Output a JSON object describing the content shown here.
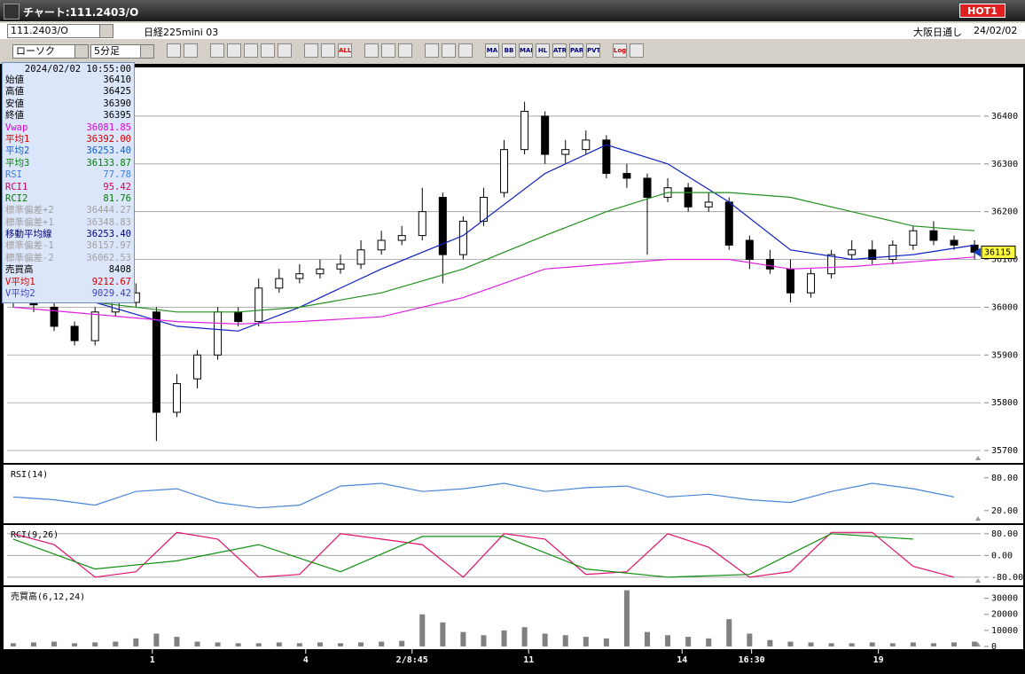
{
  "window": {
    "title": "チャート:111.2403/O",
    "hot": "HOT1"
  },
  "toolbar": {
    "symbol": "111.2403/O",
    "name": "日経225mini 03",
    "market": "大阪日通し",
    "date": "24/02/02",
    "chart_type": "ローソク",
    "interval": "5分足",
    "icons": [
      "ALL",
      "MA",
      "BB",
      "MAE",
      "HL",
      "ATR",
      "PAR",
      "PVT",
      "Log"
    ]
  },
  "info_panel": {
    "timestamp": "2024/02/02 10:55:00",
    "rows": [
      {
        "label": "始値",
        "value": "36410",
        "color": "#000000"
      },
      {
        "label": "高値",
        "value": "36425",
        "color": "#000000"
      },
      {
        "label": "安値",
        "value": "36390",
        "color": "#000000"
      },
      {
        "label": "終値",
        "value": "36395",
        "color": "#000000"
      },
      {
        "label": "Vwap",
        "value": "36081.85",
        "color": "#e000e0"
      },
      {
        "label": "平均1",
        "value": "36392.00",
        "color": "#d00000"
      },
      {
        "label": "平均2",
        "value": "36253.40",
        "color": "#1060d0"
      },
      {
        "label": "平均3",
        "value": "36133.87",
        "color": "#008000"
      },
      {
        "label": "RSI",
        "value": "77.78",
        "color": "#4080e0"
      },
      {
        "label": "RCI1",
        "value": "95.42",
        "color": "#d00060"
      },
      {
        "label": "RCI2",
        "value": "81.76",
        "color": "#008000"
      },
      {
        "label": "標準偏差+2",
        "value": "36444.27",
        "color": "#a0a0a0"
      },
      {
        "label": "標準偏差+1",
        "value": "36348.83",
        "color": "#a0a0a0"
      },
      {
        "label": "移動平均線",
        "value": "36253.40",
        "color": "#000080"
      },
      {
        "label": "標準偏差-1",
        "value": "36157.97",
        "color": "#a0a0a0"
      },
      {
        "label": "標準偏差-2",
        "value": "36062.53",
        "color": "#a0a0a0"
      },
      {
        "label": "売買高",
        "value": "8408",
        "color": "#000000"
      },
      {
        "label": "V平均1",
        "value": "9212.67",
        "color": "#d00000"
      },
      {
        "label": "V平均2",
        "value": "9029.42",
        "color": "#4040c0"
      }
    ]
  },
  "chart_data": [
    {
      "type": "candlestick",
      "xlim": [
        -0.3,
        47.3
      ],
      "ylim": [
        35674,
        36502
      ],
      "yticks": [
        35700,
        35800,
        35900,
        36000,
        36100,
        36200,
        36300,
        36400
      ],
      "grid": true,
      "up_color": "#ffffff",
      "down_color": "#000000",
      "open": [
        36010,
        36020,
        36000,
        35960,
        35930,
        35990,
        36010,
        35990,
        35780,
        35850,
        35900,
        35990,
        35970,
        36040,
        36060,
        36070,
        36080,
        36090,
        36120,
        36140,
        36150,
        36230,
        36110,
        36180,
        36240,
        36330,
        36400,
        36320,
        36330,
        36350,
        36280,
        36270,
        36230,
        36250,
        36210,
        36220,
        36140,
        36100,
        36080,
        36030,
        36070,
        36110,
        36120,
        36100,
        36130,
        36160,
        36140,
        36130
      ],
      "high": [
        36040,
        36035,
        36010,
        35970,
        36000,
        36030,
        36050,
        36000,
        35860,
        35910,
        36000,
        36000,
        36060,
        36080,
        36090,
        36100,
        36110,
        36140,
        36160,
        36170,
        36250,
        36240,
        36190,
        36250,
        36350,
        36430,
        36410,
        36350,
        36370,
        36360,
        36300,
        36280,
        36270,
        36260,
        36240,
        36230,
        36150,
        36120,
        36100,
        36080,
        36120,
        36140,
        36140,
        36140,
        36170,
        36180,
        36150,
        36140
      ],
      "low": [
        36000,
        35990,
        35950,
        35920,
        35920,
        35980,
        36000,
        35720,
        35770,
        35830,
        35890,
        35960,
        35960,
        36030,
        36050,
        36060,
        36070,
        36080,
        36110,
        36130,
        36140,
        36050,
        36100,
        36170,
        36230,
        36320,
        36300,
        36300,
        36320,
        36270,
        36250,
        36110,
        36220,
        36200,
        36200,
        36120,
        36080,
        36070,
        36010,
        36020,
        36060,
        36100,
        36090,
        36090,
        36120,
        36130,
        36120,
        36100
      ],
      "close": [
        36020,
        36005,
        35960,
        35930,
        35990,
        36010,
        36030,
        35780,
        35840,
        35900,
        35990,
        35970,
        36040,
        36060,
        36070,
        36080,
        36090,
        36120,
        36140,
        36150,
        36200,
        36110,
        36180,
        36230,
        36330,
        36410,
        36320,
        36330,
        36350,
        36280,
        36270,
        36230,
        36250,
        36210,
        36220,
        36130,
        36100,
        36080,
        36030,
        36070,
        36110,
        36120,
        36100,
        36130,
        36160,
        36140,
        36130,
        36115
      ],
      "series": [
        {
          "color": "#1020c0",
          "x": [
            0,
            4,
            8,
            11,
            14,
            18,
            22,
            26,
            29,
            32,
            35,
            38,
            41,
            44,
            47
          ],
          "values": [
            36020,
            36010,
            35960,
            35950,
            36000,
            36080,
            36150,
            36280,
            36340,
            36300,
            36220,
            36120,
            36100,
            36110,
            36130
          ]
        },
        {
          "color": "#209020",
          "x": [
            0,
            4,
            8,
            11,
            14,
            18,
            22,
            26,
            29,
            32,
            35,
            38,
            41,
            44,
            47
          ],
          "values": [
            36030,
            36010,
            35990,
            35990,
            36000,
            36030,
            36080,
            36150,
            36200,
            36240,
            36240,
            36230,
            36200,
            36170,
            36160
          ]
        },
        {
          "color": "#e020e0",
          "x": [
            0,
            4,
            8,
            11,
            14,
            18,
            22,
            26,
            29,
            32,
            35,
            38,
            41,
            44,
            47
          ],
          "values": [
            36000,
            35985,
            35970,
            35965,
            35970,
            35980,
            36020,
            36080,
            36090,
            36100,
            36100,
            36080,
            36085,
            36095,
            36105
          ]
        }
      ],
      "last_price": 36115
    },
    {
      "type": "line",
      "title": "RSI(14)",
      "xlim": [
        -0.3,
        47.3
      ],
      "ylim": [
        -3,
        104
      ],
      "yticks": [
        {
          "value": 20,
          "label": "20.00"
        },
        {
          "value": 80,
          "label": "80.00"
        }
      ],
      "grid": false,
      "series": [
        {
          "color": "#4a86d8",
          "x": [
            0,
            2,
            4,
            6,
            8,
            10,
            12,
            14,
            16,
            18,
            20,
            22,
            24,
            26,
            28,
            30,
            32,
            34,
            36,
            38,
            40,
            42,
            44,
            46
          ],
          "values": [
            45,
            40,
            30,
            55,
            60,
            35,
            25,
            30,
            65,
            70,
            55,
            60,
            70,
            55,
            62,
            65,
            45,
            50,
            40,
            35,
            55,
            70,
            60,
            45
          ]
        }
      ]
    },
    {
      "type": "line",
      "title": "RCI(9,26)",
      "xlim": [
        -0.3,
        47.3
      ],
      "ylim": [
        -110,
        112
      ],
      "yticks": [
        {
          "value": -80,
          "label": "-80.00"
        },
        {
          "value": 0,
          "label": "0.00"
        },
        {
          "value": 80,
          "label": "80.00"
        }
      ],
      "grid": true,
      "series": [
        {
          "color": "#e0106a",
          "x": [
            0,
            2,
            4,
            6,
            8,
            10,
            12,
            14,
            16,
            18,
            20,
            22,
            24,
            26,
            28,
            30,
            32,
            34,
            36,
            38,
            40,
            42,
            44,
            46
          ],
          "values": [
            80,
            40,
            -80,
            -60,
            85,
            60,
            -80,
            -70,
            80,
            60,
            40,
            -80,
            80,
            60,
            -70,
            -60,
            80,
            30,
            -80,
            -60,
            85,
            85,
            -40,
            -80
          ]
        },
        {
          "color": "#109010",
          "x": [
            0,
            4,
            8,
            12,
            16,
            20,
            24,
            28,
            32,
            36,
            40,
            44
          ],
          "values": [
            60,
            -50,
            -20,
            40,
            -60,
            70,
            70,
            -50,
            -80,
            -70,
            80,
            60
          ]
        }
      ]
    },
    {
      "type": "bar",
      "title": "売買高(6,12,24)",
      "xlim": [
        -0.3,
        47.3
      ],
      "ylim": [
        -1700,
        37000
      ],
      "yticks": [
        0,
        10000,
        20000,
        30000
      ],
      "grid": false,
      "color": "#808080",
      "values": [
        2000,
        2500,
        3000,
        2000,
        2500,
        3000,
        5000,
        8000,
        6000,
        3000,
        2500,
        2000,
        2000,
        2500,
        2000,
        2500,
        2000,
        2500,
        3000,
        3500,
        20000,
        15000,
        9000,
        7000,
        10000,
        12000,
        8000,
        7000,
        6000,
        5000,
        35000,
        9000,
        7000,
        6000,
        5000,
        17000,
        8000,
        4000,
        3000,
        2500,
        2000,
        2000,
        2500,
        2000,
        2500,
        2000,
        2500,
        3000
      ],
      "xticks": [
        {
          "value": 6.8,
          "label": "1"
        },
        {
          "value": 14.3,
          "label": "4"
        },
        {
          "value": 19.5,
          "label": "2/8:45"
        },
        {
          "value": 25.2,
          "label": "11"
        },
        {
          "value": 32.7,
          "label": "14"
        },
        {
          "value": 36.1,
          "label": "16:30"
        },
        {
          "value": 42.3,
          "label": "19"
        }
      ]
    }
  ]
}
